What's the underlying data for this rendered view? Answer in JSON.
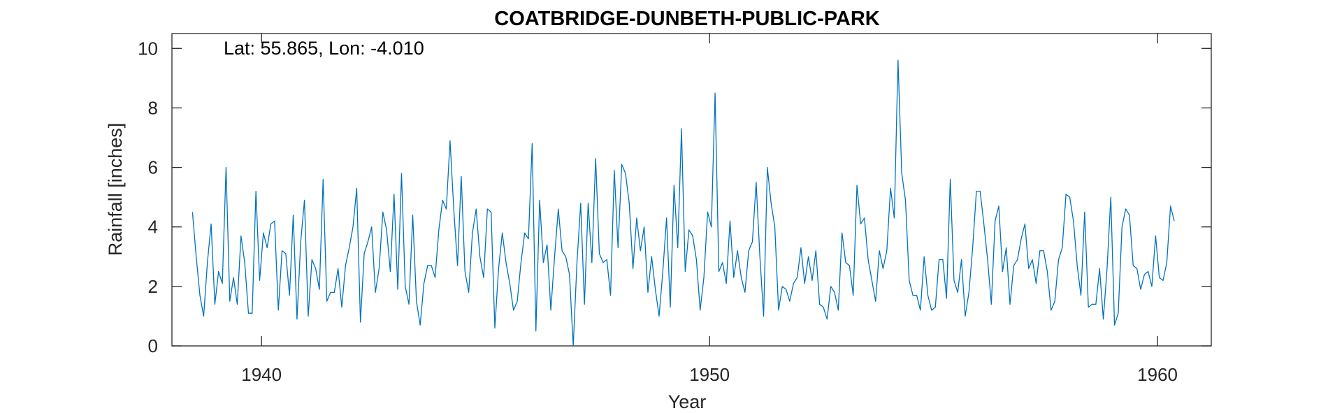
{
  "chart_data": {
    "type": "line",
    "title": "COATBRIDGE-DUNBETH-PUBLIC-PARK",
    "xlabel": "Year",
    "ylabel": "Rainfall [inches]",
    "annotation": "Lat: 55.865, Lon: -4.010",
    "xlim": [
      1938.0,
      1961.2
    ],
    "ylim": [
      0,
      10.5
    ],
    "xticks": [
      1940,
      1950,
      1960
    ],
    "yticks": [
      0,
      2,
      4,
      6,
      8,
      10
    ],
    "grid": false,
    "line_color": "#0072BD",
    "series": [
      {
        "x_start": 1938.458,
        "x_step": 0.08333,
        "values": [
          4.5,
          3.0,
          1.7,
          1.0,
          2.8,
          4.1,
          1.4,
          2.5,
          2.1,
          6.0,
          1.5,
          2.3,
          1.4,
          3.7,
          2.8,
          1.1,
          1.1,
          5.2,
          2.2,
          3.8,
          3.3,
          4.1,
          4.2,
          1.2,
          3.2,
          3.1,
          1.7,
          4.4,
          0.9,
          3.5,
          4.9,
          1.0,
          2.9,
          2.6,
          1.9,
          5.6,
          1.5,
          1.8,
          1.8,
          2.6,
          1.3,
          2.7,
          3.3,
          4.0,
          5.3,
          0.8,
          3.1,
          3.5,
          4.0,
          1.8,
          2.6,
          4.5,
          3.9,
          2.5,
          5.1,
          1.9,
          5.8,
          2.0,
          1.4,
          4.4,
          1.5,
          0.7,
          2.1,
          2.7,
          2.7,
          2.3,
          3.9,
          4.9,
          4.6,
          6.9,
          4.6,
          2.7,
          5.7,
          2.5,
          1.8,
          3.8,
          4.6,
          3.0,
          2.3,
          4.6,
          4.5,
          0.6,
          2.6,
          3.8,
          2.8,
          2.1,
          1.2,
          1.5,
          2.8,
          3.8,
          3.6,
          6.8,
          0.5,
          4.9,
          2.8,
          3.4,
          1.2,
          3.0,
          4.6,
          3.2,
          3.0,
          2.4,
          0.0,
          2.8,
          4.8,
          1.4,
          4.8,
          2.8,
          6.3,
          3.1,
          2.8,
          2.9,
          1.7,
          5.9,
          3.3,
          6.1,
          5.8,
          4.8,
          2.6,
          4.3,
          3.2,
          4.0,
          1.8,
          3.0,
          1.9,
          1.0,
          2.5,
          4.3,
          1.3,
          5.4,
          3.3,
          7.3,
          2.5,
          3.9,
          3.7,
          2.9,
          1.2,
          2.3,
          4.5,
          4.0,
          8.5,
          2.5,
          2.8,
          2.1,
          4.2,
          2.3,
          3.2,
          2.3,
          1.8,
          3.2,
          3.5,
          5.5,
          3.0,
          1.0,
          6.0,
          4.8,
          4.0,
          1.2,
          2.0,
          1.9,
          1.5,
          2.1,
          2.3,
          3.3,
          2.1,
          3.0,
          2.2,
          3.2,
          1.4,
          1.3,
          0.9,
          2.0,
          1.8,
          1.2,
          3.8,
          2.8,
          2.7,
          1.7,
          5.4,
          4.1,
          4.3,
          2.9,
          2.2,
          1.5,
          3.2,
          2.6,
          3.2,
          5.3,
          4.3,
          9.6,
          5.8,
          4.9,
          2.2,
          1.7,
          1.7,
          1.2,
          3.0,
          1.7,
          1.2,
          1.3,
          2.9,
          2.9,
          1.6,
          5.6,
          2.2,
          1.8,
          2.9,
          1.0,
          1.8,
          3.3,
          5.2,
          5.2,
          4.1,
          2.9,
          1.4,
          4.2,
          4.7,
          2.5,
          3.3,
          1.4,
          2.7,
          2.9,
          3.6,
          4.1,
          2.6,
          2.9,
          2.1,
          3.2,
          3.2,
          2.5,
          1.2,
          1.5,
          2.9,
          3.3,
          5.1,
          5.0,
          4.2,
          2.7,
          1.7,
          4.5,
          1.3,
          1.4,
          1.4,
          2.6,
          0.9,
          2.6,
          5.0,
          0.7,
          1.1,
          4.0,
          4.6,
          4.4,
          2.7,
          2.6,
          1.9,
          2.4,
          2.5,
          2.0,
          3.7,
          2.3,
          2.2,
          2.8,
          4.7,
          4.2
        ]
      }
    ]
  }
}
